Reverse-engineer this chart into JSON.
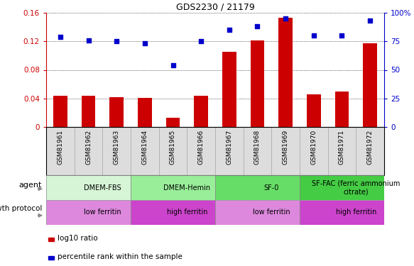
{
  "title": "GDS2230 / 21179",
  "samples": [
    "GSM81961",
    "GSM81962",
    "GSM81963",
    "GSM81964",
    "GSM81965",
    "GSM81966",
    "GSM81967",
    "GSM81968",
    "GSM81969",
    "GSM81970",
    "GSM81971",
    "GSM81972"
  ],
  "log10_ratio": [
    0.044,
    0.044,
    0.042,
    0.041,
    0.013,
    0.044,
    0.105,
    0.121,
    0.153,
    0.046,
    0.05,
    0.117
  ],
  "percentile_rank": [
    79,
    76,
    75,
    73,
    54,
    75,
    85,
    88,
    95,
    80,
    80,
    93
  ],
  "bar_color": "#cc0000",
  "dot_color": "#0000cc",
  "ylim_left": [
    0,
    0.16
  ],
  "ylim_right": [
    0,
    100
  ],
  "yticks_left": [
    0,
    0.04,
    0.08,
    0.12,
    0.16
  ],
  "yticks_right": [
    0,
    25,
    50,
    75,
    100
  ],
  "ytick_labels_left": [
    "0",
    "0.04",
    "0.08",
    "0.12",
    "0.16"
  ],
  "ytick_labels_right": [
    "0",
    "25",
    "50",
    "75",
    "100%"
  ],
  "agent_groups": [
    {
      "label": "DMEM-FBS",
      "start": 0,
      "end": 3,
      "color": "#d6f5d6"
    },
    {
      "label": "DMEM-Hemin",
      "start": 3,
      "end": 6,
      "color": "#99ee99"
    },
    {
      "label": "SF-0",
      "start": 6,
      "end": 9,
      "color": "#66dd66"
    },
    {
      "label": "SF-FAC (ferric ammonium\ncitrate)",
      "start": 9,
      "end": 12,
      "color": "#44cc44"
    }
  ],
  "protocol_groups": [
    {
      "label": "low ferritin",
      "start": 0,
      "end": 3,
      "color": "#dd88dd"
    },
    {
      "label": "high ferritin",
      "start": 3,
      "end": 6,
      "color": "#cc44cc"
    },
    {
      "label": "low ferritin",
      "start": 6,
      "end": 9,
      "color": "#dd88dd"
    },
    {
      "label": "high ferritin",
      "start": 9,
      "end": 12,
      "color": "#cc44cc"
    }
  ],
  "left_axis_color": "#cc0000",
  "right_axis_color": "#0000cc",
  "sample_bg": "#dddddd",
  "bar_width": 0.5
}
